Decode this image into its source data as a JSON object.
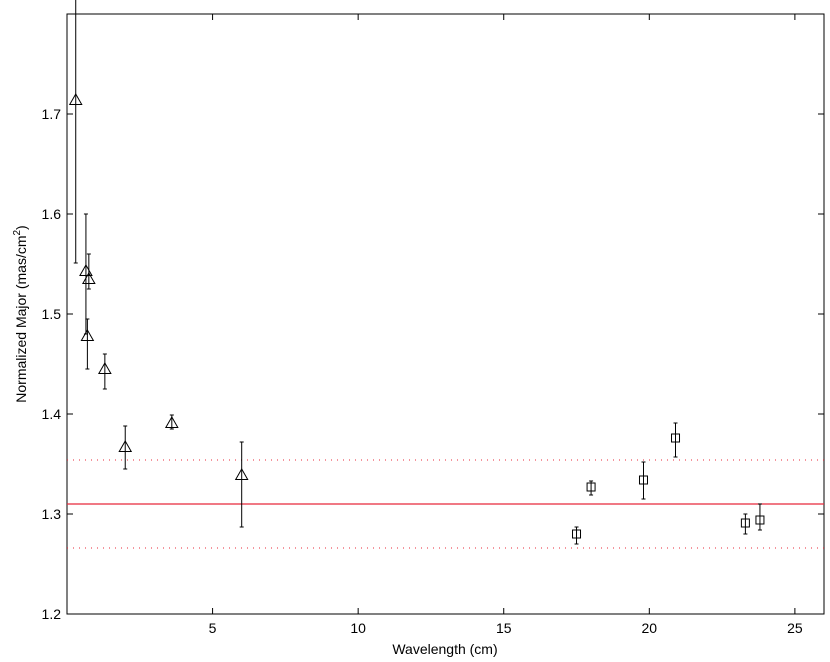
{
  "chart_data": {
    "type": "scatter",
    "title": "",
    "xlabel": "Wavelength (cm)",
    "ylabel_main": "Normalized Major (mas/cm",
    "ylabel_sup": "2",
    "ylabel_close": ")",
    "xlim": [
      0,
      26
    ],
    "ylim": [
      1.2,
      1.8
    ],
    "x_ticks": [
      5,
      10,
      15,
      20,
      25
    ],
    "x_tick_labels": [
      "5",
      "10",
      "15",
      "20",
      "25"
    ],
    "y_ticks": [
      1.2,
      1.3,
      1.4,
      1.5,
      1.6,
      1.7
    ],
    "y_tick_labels": [
      "1.2",
      "1.3",
      "1.4",
      "1.5",
      "1.6",
      "1.7"
    ],
    "grid": false,
    "series": [
      {
        "marker": "triangle",
        "color": "#000000",
        "points": [
          {
            "x": 0.3,
            "y": 1.714,
            "lo": 1.551,
            "hi": 1.895
          },
          {
            "x": 0.65,
            "y": 1.543,
            "lo": 1.48,
            "hi": 1.6
          },
          {
            "x": 0.75,
            "y": 1.535,
            "lo": 1.525,
            "hi": 1.56
          },
          {
            "x": 0.7,
            "y": 1.478,
            "lo": 1.445,
            "hi": 1.495
          },
          {
            "x": 1.3,
            "y": 1.445,
            "lo": 1.425,
            "hi": 1.46
          },
          {
            "x": 2.0,
            "y": 1.367,
            "lo": 1.345,
            "hi": 1.388
          },
          {
            "x": 3.6,
            "y": 1.391,
            "lo": 1.385,
            "hi": 1.399
          },
          {
            "x": 6.0,
            "y": 1.339,
            "lo": 1.287,
            "hi": 1.372
          }
        ]
      },
      {
        "marker": "square",
        "color": "#000000",
        "points": [
          {
            "x": 17.5,
            "y": 1.28,
            "lo": 1.27,
            "hi": 1.287
          },
          {
            "x": 18.0,
            "y": 1.327,
            "lo": 1.319,
            "hi": 1.333
          },
          {
            "x": 19.8,
            "y": 1.334,
            "lo": 1.315,
            "hi": 1.352
          },
          {
            "x": 20.9,
            "y": 1.376,
            "lo": 1.357,
            "hi": 1.391
          },
          {
            "x": 23.3,
            "y": 1.291,
            "lo": 1.28,
            "hi": 1.3
          },
          {
            "x": 23.8,
            "y": 1.294,
            "lo": 1.284,
            "hi": 1.31
          }
        ]
      }
    ],
    "reference_lines": [
      {
        "y": 1.31,
        "style": "solid",
        "color": "#e8283a"
      },
      {
        "y": 1.354,
        "style": "dotted",
        "color": "#e8283a"
      },
      {
        "y": 1.266,
        "style": "dotted",
        "color": "#e8283a"
      }
    ]
  }
}
